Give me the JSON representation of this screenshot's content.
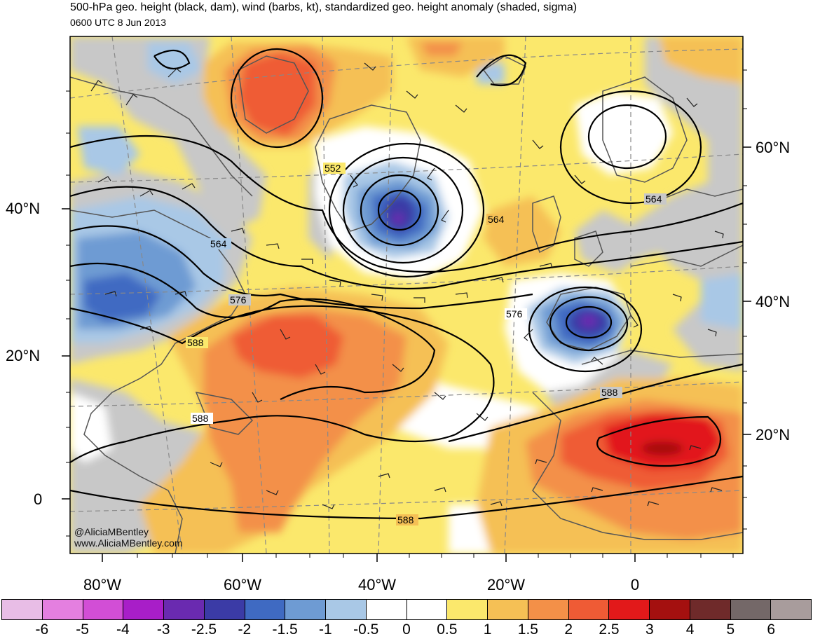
{
  "header": {
    "title": "500-hPa geo. height (black, dam), wind (barbs, kt), standardized geo. height anomaly (shaded, sigma)",
    "valid_time": "0600 UTC 8 Jun 2013"
  },
  "axes": {
    "lat_left": [
      "40°N",
      "20°N",
      "0"
    ],
    "lat_right": [
      "60°N",
      "40°N",
      "20°N"
    ],
    "lon_bottom": [
      "80°W",
      "60°W",
      "40°W",
      "20°W",
      "0"
    ]
  },
  "contour_labels": [
    "552",
    "564",
    "564",
    "564",
    "576",
    "576",
    "588",
    "588",
    "588",
    "588"
  ],
  "credits": {
    "handle": "@AliciaMBentley",
    "website": "www.AliciaMBentley.com"
  },
  "colorbar": {
    "labels": [
      "-6",
      "-5",
      "-4",
      "-3",
      "-2.5",
      "-2",
      "-1.5",
      "-1",
      "-0.5",
      "0",
      "0.5",
      "1",
      "1.5",
      "2",
      "2.5",
      "3",
      "4",
      "5",
      "6"
    ],
    "colors": [
      "#e8bde6",
      "#e47fe0",
      "#d24ed6",
      "#a81ec8",
      "#6a2ab0",
      "#3b3ba6",
      "#3f6ac2",
      "#6e9bd3",
      "#a9c8e6",
      "#ffffff",
      "#ffffff",
      "#fbe86c",
      "#f5c055",
      "#f39048",
      "#ef5b35",
      "#e2191a",
      "#a4100f",
      "#6f2a2a",
      "#746868",
      "#a89c9c"
    ]
  },
  "legend_colors": {
    "land_no_anomaly": "#c8c8c8",
    "contours": "#000000",
    "coastlines": "#555555"
  }
}
